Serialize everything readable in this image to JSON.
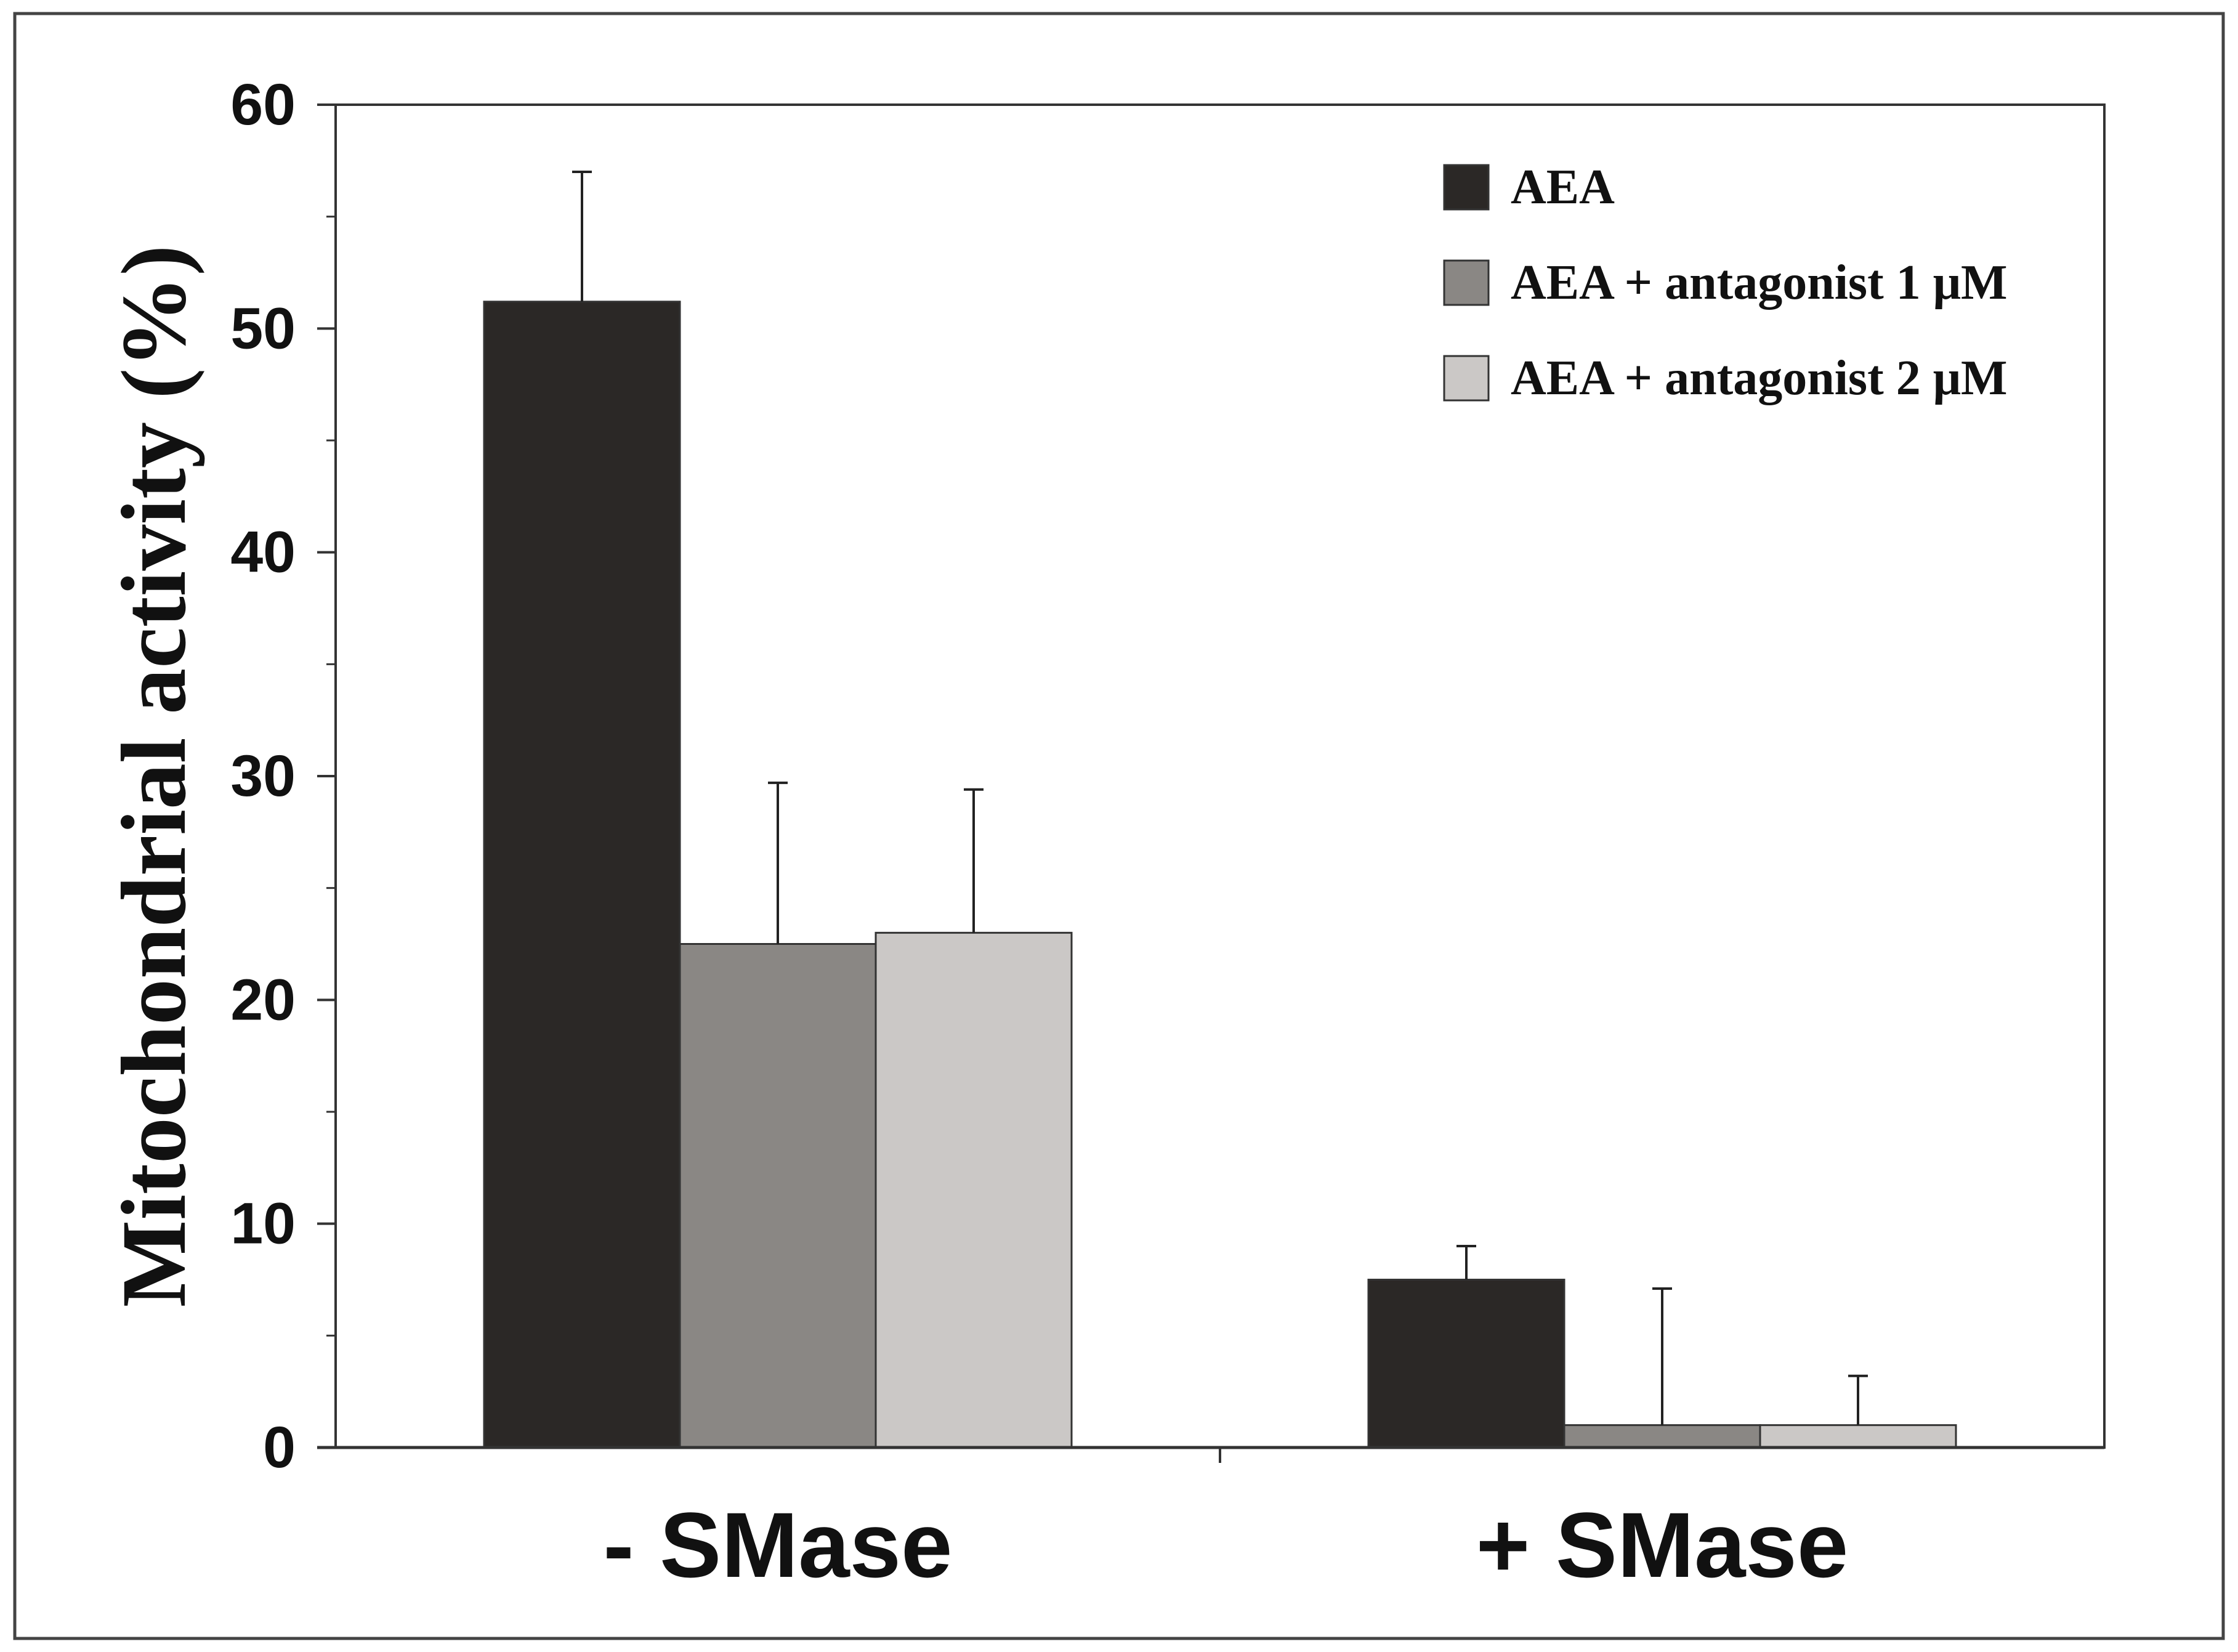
{
  "chart_data": {
    "type": "bar",
    "title": "",
    "xlabel": "",
    "ylabel": "Mitochondrial activity (%)",
    "ylim": [
      0,
      60
    ],
    "yticks": [
      "0",
      "10",
      "20",
      "30",
      "40",
      "50",
      "60"
    ],
    "categories": [
      "- SMase",
      "+ SMase"
    ],
    "series": [
      {
        "name": "AEA",
        "color": "#2b2826",
        "values": [
          51.2,
          7.5
        ],
        "errors": [
          5.8,
          1.5
        ]
      },
      {
        "name": "AEA + antagonist 1 μM",
        "color": "#8a8784",
        "values": [
          22.5,
          1.0
        ],
        "errors": [
          7.2,
          6.1
        ]
      },
      {
        "name": "AEA + antagonist 2 μM",
        "color": "#cbc8c6",
        "values": [
          23.0,
          1.0
        ],
        "errors": [
          6.4,
          2.2
        ]
      }
    ],
    "legend_position": "top-right",
    "grid": false
  }
}
